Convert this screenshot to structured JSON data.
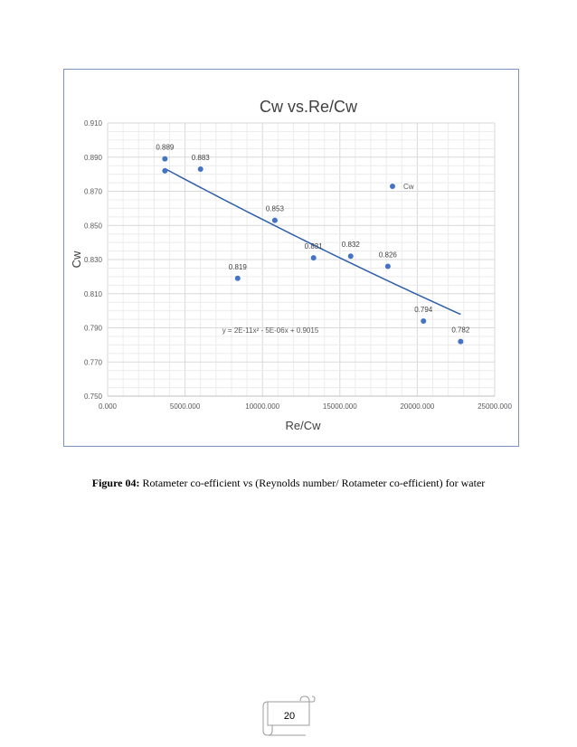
{
  "chart_data": {
    "type": "scatter",
    "title": "Cw vs.Re/Cw",
    "xlabel": "Re/Cw",
    "ylabel": "Cw",
    "xlim": [
      0,
      25000
    ],
    "ylim": [
      0.75,
      0.91
    ],
    "x_ticks": [
      "0.000",
      "5000.000",
      "10000.000",
      "15000.000",
      "20000.000",
      "25000.000"
    ],
    "y_ticks": [
      "0.910",
      "0.890",
      "0.870",
      "0.850",
      "0.830",
      "0.810",
      "0.790",
      "0.770",
      "0.750"
    ],
    "grid": true,
    "legend_position": "right",
    "series": [
      {
        "name": "Cw",
        "color": "#4472c4",
        "points": [
          {
            "x": 3700,
            "y": 0.889,
            "label": "0.889"
          },
          {
            "x": 3700,
            "y": 0.882,
            "label": ""
          },
          {
            "x": 6000,
            "y": 0.883,
            "label": "0.883"
          },
          {
            "x": 8400,
            "y": 0.819,
            "label": "0.819"
          },
          {
            "x": 10800,
            "y": 0.853,
            "label": "0.853"
          },
          {
            "x": 13300,
            "y": 0.831,
            "label": "0.831"
          },
          {
            "x": 15700,
            "y": 0.832,
            "label": "0.832"
          },
          {
            "x": 18100,
            "y": 0.826,
            "label": "0.826"
          },
          {
            "x": 20400,
            "y": 0.794,
            "label": "0.794"
          },
          {
            "x": 22800,
            "y": 0.782,
            "label": "0.782"
          }
        ]
      }
    ],
    "trendline": {
      "type": "polynomial",
      "color": "#2e5fa8",
      "coefficients": {
        "a": 2e-11,
        "b": -5e-06,
        "c": 0.9015
      },
      "x_range": [
        3700,
        22800
      ],
      "equation": "y = 2E-11x² - 5E-06x + 0.9015"
    }
  },
  "caption": {
    "label": "Figure 04:",
    "text": " Rotameter co-efficient vs (Reynolds number/ Rotameter co-efficient) for water"
  },
  "page_number": "20"
}
